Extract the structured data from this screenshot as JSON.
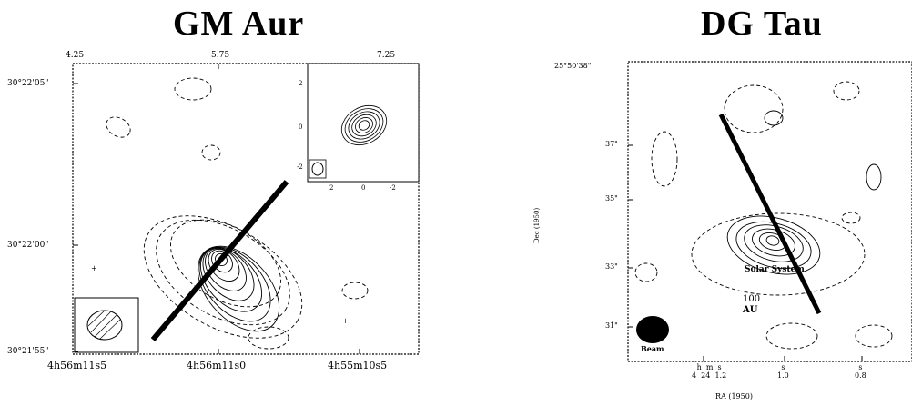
{
  "panels": {
    "left": {
      "title": "GM Aur",
      "top_ticks": [
        "4.25",
        "5.75",
        "7.25"
      ],
      "y_ticks": [
        "30°22'05\"",
        "30°22'00\"",
        "30°21'55\""
      ],
      "x_ticks": [
        "4h56m11s5",
        "4h56m11s0",
        "4h55m10s5"
      ],
      "inset_y_ticks": [
        "2",
        "0",
        "-2"
      ],
      "inset_x_ticks": [
        "2",
        "0",
        "-2"
      ]
    },
    "right": {
      "title": "DG Tau",
      "y_ticks": [
        "25°50'38\"",
        "37\"",
        "35\"",
        "33\"",
        "31\""
      ],
      "y_axis_label": "Dec (1950)",
      "x_axis_label": "RA (1950)",
      "x_ticks": [
        "h  m  s\n4  24  1.2",
        "s\n1.0",
        "s\n0.8"
      ],
      "annotation": "Solar System",
      "scale_value": "100",
      "scale_unit": "AU",
      "beam_label": "Beam"
    }
  }
}
